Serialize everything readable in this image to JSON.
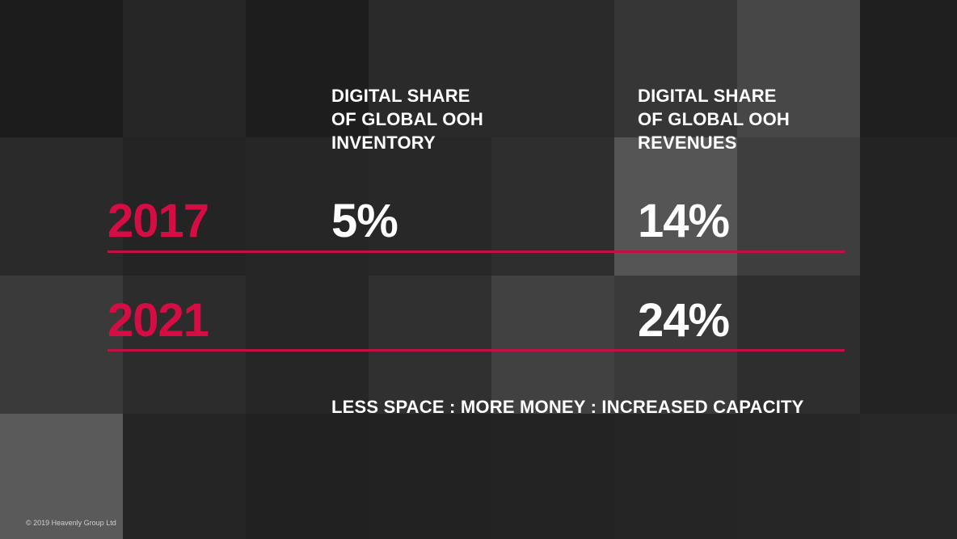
{
  "slide": {
    "headers": {
      "inventory": "DIGITAL SHARE\nOF GLOBAL OOH\nINVENTORY",
      "revenues": "DIGITAL SHARE\nOF GLOBAL OOH\nREVENUES"
    },
    "rows": [
      {
        "year": "2017",
        "inventory": "5%",
        "revenues": "14%"
      },
      {
        "year": "2021",
        "inventory": "",
        "revenues": "24%"
      }
    ],
    "tagline": "LESS SPACE : MORE MONEY : INCREASED CAPACITY",
    "copyright": "© 2019 Heavenly Group Ltd"
  },
  "colors": {
    "accent": "#d60c45",
    "rule": "#c40e44",
    "text": "#ffffff",
    "tiles": [
      "#1c1c1c",
      "#262626",
      "#1d1d1d",
      "#2a2a2a",
      "#2a2a2a",
      "#363636",
      "#474747",
      "#1f1f1f",
      "#2a2a2a",
      "#242424",
      "#262626",
      "#282828",
      "#2e2e2e",
      "#555555",
      "#3e3e3e",
      "#232323",
      "#3a3a3a",
      "#2c2c2c",
      "#262626",
      "#303030",
      "#414141",
      "#3a3a3a",
      "#2e2e2e",
      "#232323",
      "#5a5a5a",
      "#252525",
      "#212121",
      "#222222",
      "#232323",
      "#252525",
      "#262626",
      "#282828"
    ]
  }
}
